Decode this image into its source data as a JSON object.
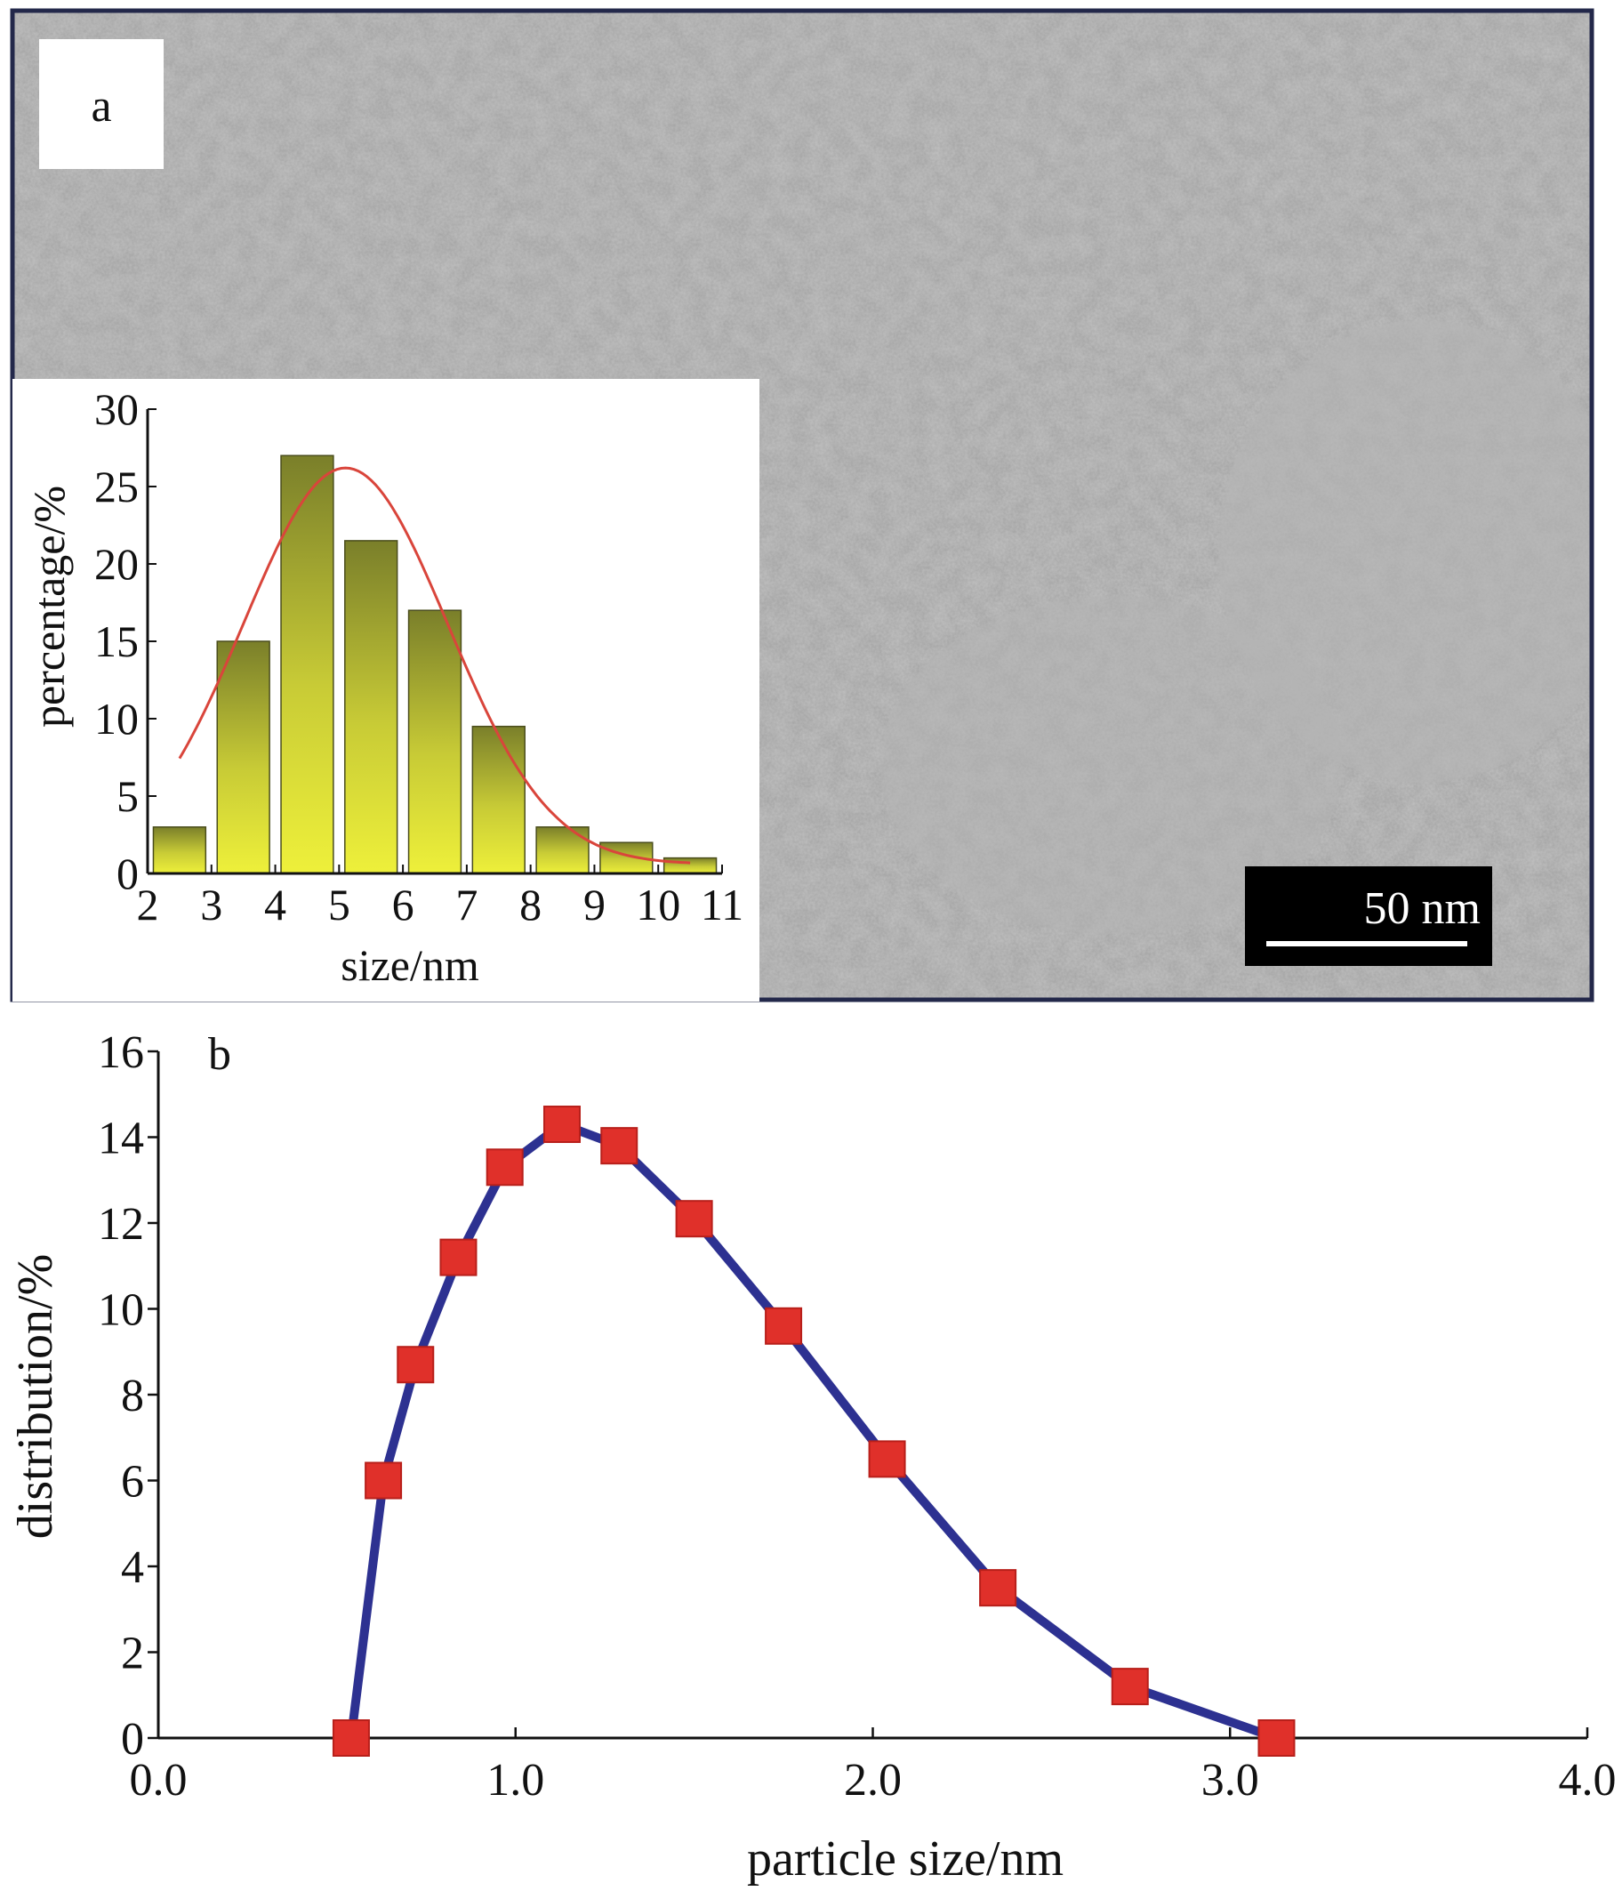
{
  "panel_a": {
    "label": "a",
    "scale_bar_label": "50 nm",
    "colors": {
      "bar_top": "#7a7f2a",
      "bar_bottom": "#eef03a",
      "fit_curve": "#d9453b",
      "frame": "#23284a"
    }
  },
  "panel_b": {
    "label": "b",
    "colors": {
      "line": "#2d3191",
      "marker": "#e0302a"
    }
  },
  "chart_data": [
    {
      "type": "bar",
      "title": "",
      "xlabel": "size/nm",
      "ylabel": "percentage/%",
      "xlim": [
        2,
        11
      ],
      "ylim": [
        0,
        30
      ],
      "xticks": [
        2,
        3,
        4,
        5,
        6,
        7,
        8,
        9,
        10,
        11
      ],
      "yticks": [
        0,
        5,
        10,
        15,
        20,
        25,
        30
      ],
      "bar_centers": [
        2.5,
        3.5,
        4.5,
        5.5,
        6.5,
        7.5,
        8.5,
        9.5,
        10.5
      ],
      "values": [
        3,
        15,
        27,
        21.5,
        17,
        9.5,
        3,
        2,
        1
      ],
      "fit": {
        "type": "gaussian",
        "peak_x": 5.1,
        "peak_y": 25.6,
        "sigma": 1.6,
        "x_range": [
          2.5,
          10.5
        ]
      }
    },
    {
      "type": "line",
      "title": "",
      "xlabel": "particle size/nm",
      "ylabel": "distribution/%",
      "xlim": [
        0,
        4
      ],
      "ylim": [
        0,
        16
      ],
      "xticks": [
        "0.0",
        "1.0",
        "2.0",
        "3.0",
        "4.0"
      ],
      "yticks": [
        0,
        2,
        4,
        6,
        8,
        10,
        12,
        14,
        16
      ],
      "markers": true,
      "x": [
        0.54,
        0.63,
        0.72,
        0.84,
        0.97,
        1.13,
        1.29,
        1.5,
        1.75,
        2.04,
        2.35,
        2.72,
        3.13
      ],
      "y": [
        0,
        6,
        8.7,
        11.2,
        13.3,
        14.3,
        13.8,
        12.1,
        9.6,
        6.5,
        3.5,
        1.2,
        0
      ]
    }
  ]
}
